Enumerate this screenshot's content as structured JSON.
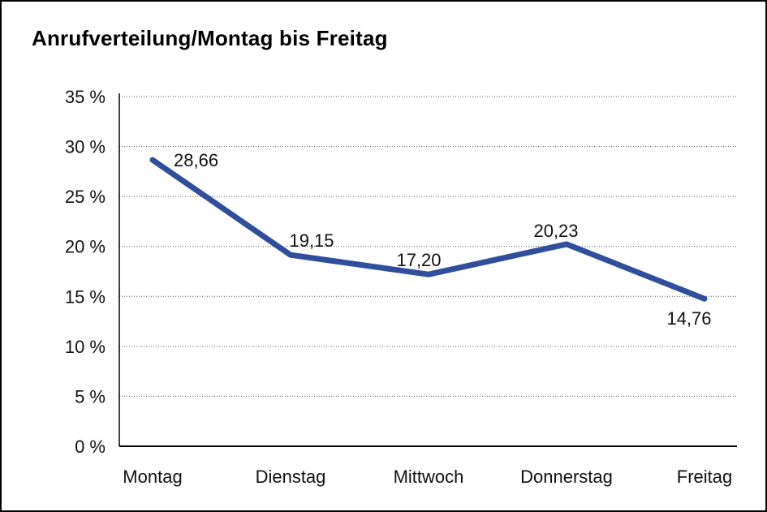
{
  "chart_data": {
    "type": "line",
    "title": "Anrufverteilung/Montag bis Freitag",
    "categories": [
      "Montag",
      "Dienstag",
      "Mittwoch",
      "Donnerstag",
      "Freitag"
    ],
    "values": [
      28.66,
      19.15,
      17.2,
      20.23,
      14.76
    ],
    "value_labels": [
      "28,66",
      "19,15",
      "17,20",
      "20,23",
      "14,76"
    ],
    "ytick_labels": [
      "0 %",
      "5 %",
      "10 %",
      "15 %",
      "20 %",
      "25 %",
      "30 %",
      "35 %"
    ],
    "ylim": [
      0,
      35
    ],
    "ytick_step": 5,
    "xlabel": "",
    "ylabel": "",
    "legend": "none",
    "grid": "horizontal-dotted",
    "line_color": "#2F4F9C",
    "axis_color": "#000000",
    "grid_color": "#555555",
    "text_color": "#111111"
  }
}
